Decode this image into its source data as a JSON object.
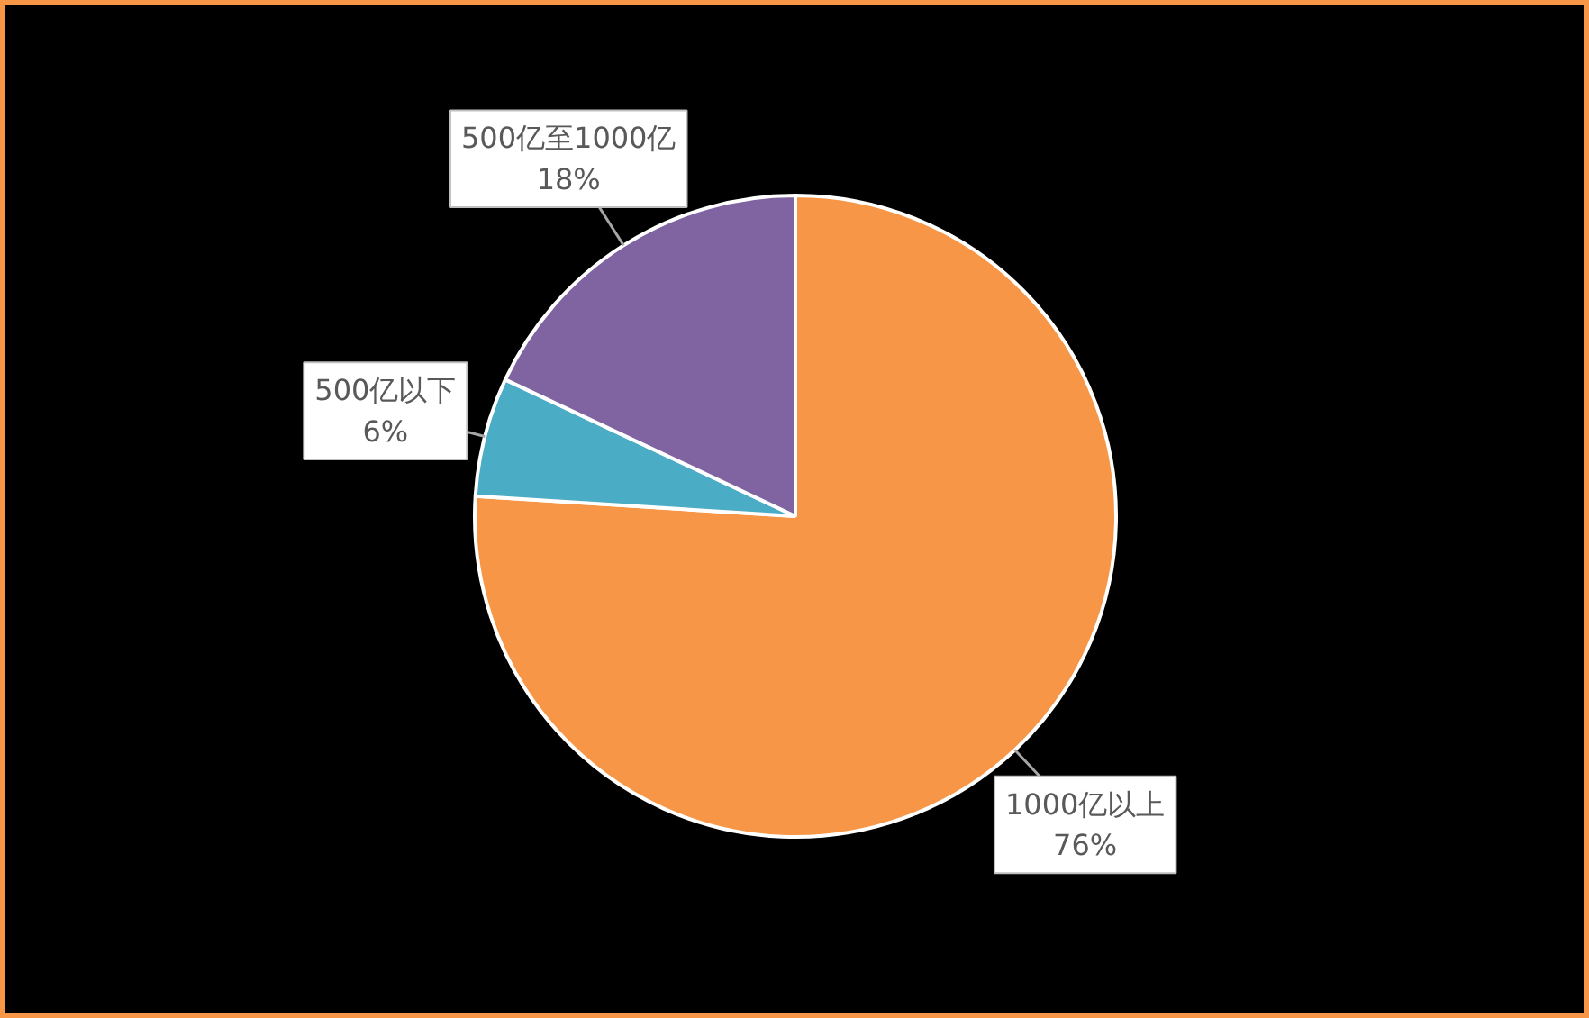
{
  "chart_data": {
    "type": "pie",
    "categories": [
      "1000亿以上",
      "500亿以下",
      "500亿至1000亿"
    ],
    "values": [
      76,
      6,
      18
    ],
    "colors": [
      "#f79646",
      "#4bacc6",
      "#8064a2"
    ],
    "value_labels": [
      "76%",
      "6%",
      "18%"
    ]
  }
}
